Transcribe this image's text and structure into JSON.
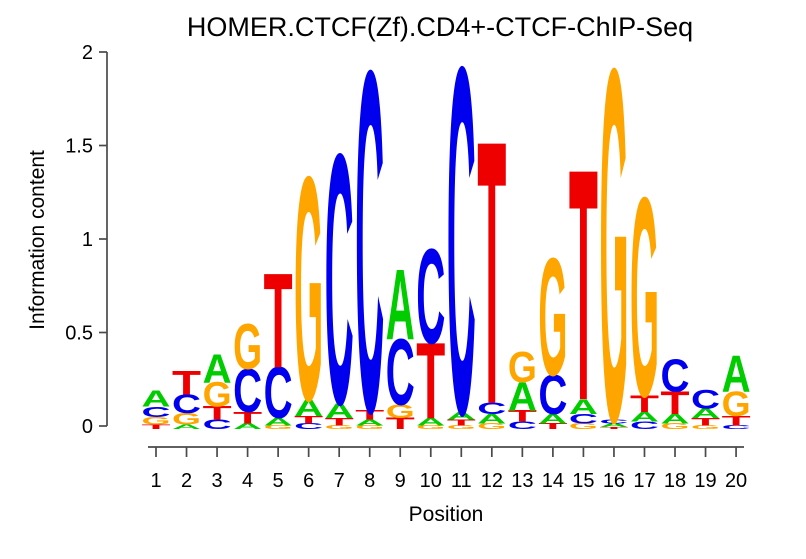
{
  "chart_data": {
    "type": "sequence_logo",
    "title": "HOMER.CTCF(Zf).CD4+-CTCF-ChIP-Seq",
    "xlabel": "Position",
    "ylabel": "Information content",
    "ylim": [
      0,
      2
    ],
    "yticks": [
      0,
      0.5,
      1,
      1.5,
      2
    ],
    "x_range": [
      1,
      20
    ],
    "grid": "off",
    "stack_order": "top_to_bottom",
    "base_colors": {
      "A": "#00CC00",
      "C": "#0000EE",
      "G": "#FFA500",
      "T": "#EE0000"
    },
    "positions": [
      {
        "position": 1,
        "stack": [
          {
            "base": "A",
            "bits": 0.085
          },
          {
            "base": "C",
            "bits": 0.055
          },
          {
            "base": "G",
            "bits": 0.04
          },
          {
            "base": "T",
            "bits": 0.025
          }
        ]
      },
      {
        "position": 2,
        "stack": [
          {
            "base": "T",
            "bits": 0.125
          },
          {
            "base": "C",
            "bits": 0.1
          },
          {
            "base": "G",
            "bits": 0.06
          },
          {
            "base": "A",
            "bits": 0.025
          }
        ]
      },
      {
        "position": 3,
        "stack": [
          {
            "base": "A",
            "bits": 0.15
          },
          {
            "base": "G",
            "bits": 0.13
          },
          {
            "base": "T",
            "bits": 0.07
          },
          {
            "base": "C",
            "bits": 0.05
          }
        ]
      },
      {
        "position": 4,
        "stack": [
          {
            "base": "G",
            "bits": 0.24
          },
          {
            "base": "C",
            "bits": 0.23
          },
          {
            "base": "T",
            "bits": 0.06
          },
          {
            "base": "A",
            "bits": 0.03
          }
        ]
      },
      {
        "position": 5,
        "stack": [
          {
            "base": "T",
            "bits": 0.5
          },
          {
            "base": "C",
            "bits": 0.27
          },
          {
            "base": "A",
            "bits": 0.04
          },
          {
            "base": "G",
            "bits": 0.02
          }
        ]
      },
      {
        "position": 6,
        "stack": [
          {
            "base": "G",
            "bits": 1.18
          },
          {
            "base": "A",
            "bits": 0.09
          },
          {
            "base": "T",
            "bits": 0.04
          },
          {
            "base": "C",
            "bits": 0.03
          }
        ]
      },
      {
        "position": 7,
        "stack": [
          {
            "base": "C",
            "bits": 1.32
          },
          {
            "base": "A",
            "bits": 0.08
          },
          {
            "base": "T",
            "bits": 0.04
          },
          {
            "base": "G",
            "bits": 0.02
          }
        ]
      },
      {
        "position": 8,
        "stack": [
          {
            "base": "C",
            "bits": 1.8
          },
          {
            "base": "T",
            "bits": 0.05
          },
          {
            "base": "A",
            "bits": 0.03
          },
          {
            "base": "G",
            "bits": 0.02
          }
        ]
      },
      {
        "position": 9,
        "stack": [
          {
            "base": "A",
            "bits": 0.37
          },
          {
            "base": "C",
            "bits": 0.35
          },
          {
            "base": "G",
            "bits": 0.07
          },
          {
            "base": "T",
            "bits": 0.06
          }
        ]
      },
      {
        "position": 10,
        "stack": [
          {
            "base": "C",
            "bits": 0.5
          },
          {
            "base": "T",
            "bits": 0.4
          },
          {
            "base": "A",
            "bits": 0.04
          },
          {
            "base": "G",
            "bits": 0.02
          }
        ]
      },
      {
        "position": 11,
        "stack": [
          {
            "base": "C",
            "bits": 1.83
          },
          {
            "base": "A",
            "bits": 0.04
          },
          {
            "base": "T",
            "bits": 0.03
          },
          {
            "base": "G",
            "bits": 0.02
          }
        ]
      },
      {
        "position": 12,
        "stack": [
          {
            "base": "T",
            "bits": 1.39
          },
          {
            "base": "C",
            "bits": 0.06
          },
          {
            "base": "A",
            "bits": 0.05
          },
          {
            "base": "G",
            "bits": 0.03
          }
        ]
      },
      {
        "position": 13,
        "stack": [
          {
            "base": "G",
            "bits": 0.16
          },
          {
            "base": "A",
            "bits": 0.15
          },
          {
            "base": "T",
            "bits": 0.06
          },
          {
            "base": "C",
            "bits": 0.04
          }
        ]
      },
      {
        "position": 14,
        "stack": [
          {
            "base": "G",
            "bits": 0.62
          },
          {
            "base": "C",
            "bits": 0.21
          },
          {
            "base": "A",
            "bits": 0.05
          },
          {
            "base": "T",
            "bits": 0.03
          }
        ]
      },
      {
        "position": 15,
        "stack": [
          {
            "base": "T",
            "bits": 1.22
          },
          {
            "base": "A",
            "bits": 0.08
          },
          {
            "base": "C",
            "bits": 0.05
          },
          {
            "base": "G",
            "bits": 0.03
          }
        ]
      },
      {
        "position": 16,
        "stack": [
          {
            "base": "G",
            "bits": 1.86
          },
          {
            "base": "C",
            "bits": 0.02
          },
          {
            "base": "A",
            "bits": 0.02
          },
          {
            "base": "T",
            "bits": 0.01
          }
        ]
      },
      {
        "position": 17,
        "stack": [
          {
            "base": "G",
            "bits": 1.05
          },
          {
            "base": "T",
            "bits": 0.09
          },
          {
            "base": "A",
            "bits": 0.05
          },
          {
            "base": "C",
            "bits": 0.04
          }
        ]
      },
      {
        "position": 18,
        "stack": [
          {
            "base": "C",
            "bits": 0.17
          },
          {
            "base": "T",
            "bits": 0.12
          },
          {
            "base": "A",
            "bits": 0.05
          },
          {
            "base": "G",
            "bits": 0.03
          }
        ]
      },
      {
        "position": 19,
        "stack": [
          {
            "base": "C",
            "bits": 0.1
          },
          {
            "base": "A",
            "bits": 0.05
          },
          {
            "base": "T",
            "bits": 0.04
          },
          {
            "base": "G",
            "bits": 0.02
          }
        ]
      },
      {
        "position": 20,
        "stack": [
          {
            "base": "A",
            "bits": 0.19
          },
          {
            "base": "G",
            "bits": 0.13
          },
          {
            "base": "T",
            "bits": 0.05
          },
          {
            "base": "C",
            "bits": 0.02
          }
        ]
      }
    ]
  }
}
